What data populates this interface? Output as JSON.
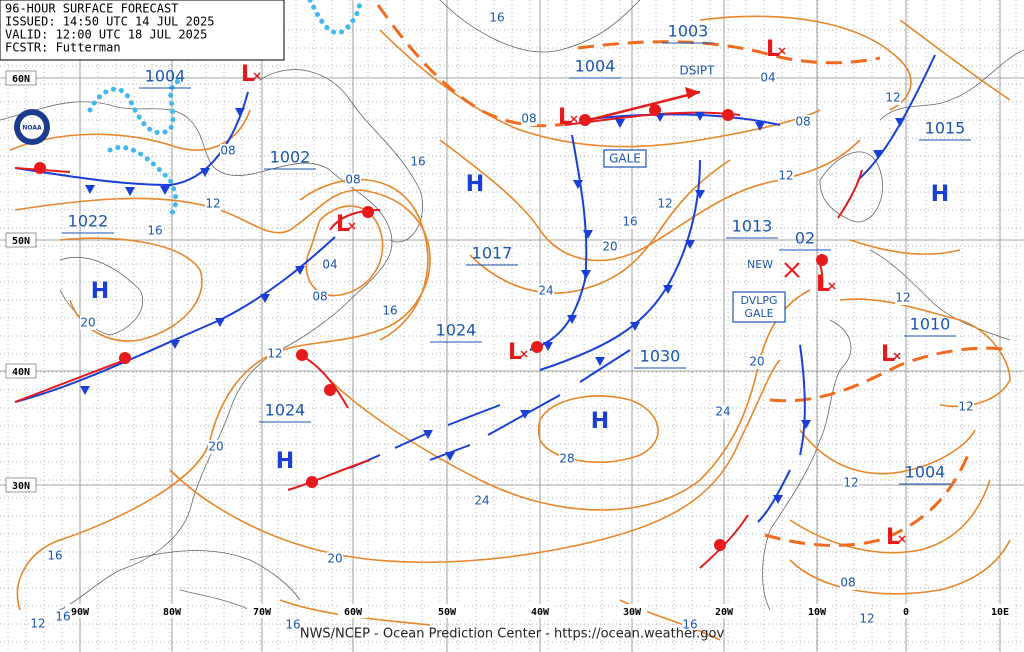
{
  "header": {
    "lines": [
      "96-HOUR SURFACE FORECAST",
      "ISSUED: 14:50 UTC 14 JUL 2025",
      "VALID: 12:00 UTC 18 JUL 2025",
      "FCSTR: Futterman"
    ]
  },
  "logo": "NOAA",
  "latitude_labels": [
    "60N",
    "50N",
    "40N",
    "30N"
  ],
  "longitude_labels": [
    "90W",
    "80W",
    "70W",
    "60W",
    "50W",
    "40W",
    "30W",
    "20W",
    "10W",
    "0",
    "10E"
  ],
  "pressure_labels": [
    "1004",
    "1002",
    "1022",
    "1024",
    "1017",
    "1024",
    "1030",
    "1004",
    "1003",
    "1013",
    "02",
    "1015",
    "1010",
    "1004"
  ],
  "highs": [
    "H",
    "H",
    "H",
    "H",
    "H"
  ],
  "lows": [
    "L",
    "L",
    "L",
    "L",
    "L",
    "L",
    "L",
    "L"
  ],
  "isobar_labels": [
    "16",
    "08",
    "12",
    "16",
    "08",
    "16",
    "04",
    "08",
    "16",
    "12",
    "20",
    "20",
    "24",
    "20",
    "16",
    "12",
    "12",
    "08",
    "08",
    "04",
    "12",
    "12",
    "20",
    "24",
    "28",
    "24",
    "20",
    "16",
    "12",
    "12",
    "08",
    "12",
    "16",
    "16",
    "12",
    "16"
  ],
  "annotations": {
    "dissipating": "DSIPT",
    "gale": "GALE",
    "new": "NEW",
    "developing_gale": [
      "DVLPG",
      "GALE"
    ]
  },
  "footer": "NWS/NCEP - Ocean Prediction Center - https://ocean.weather.gov"
}
